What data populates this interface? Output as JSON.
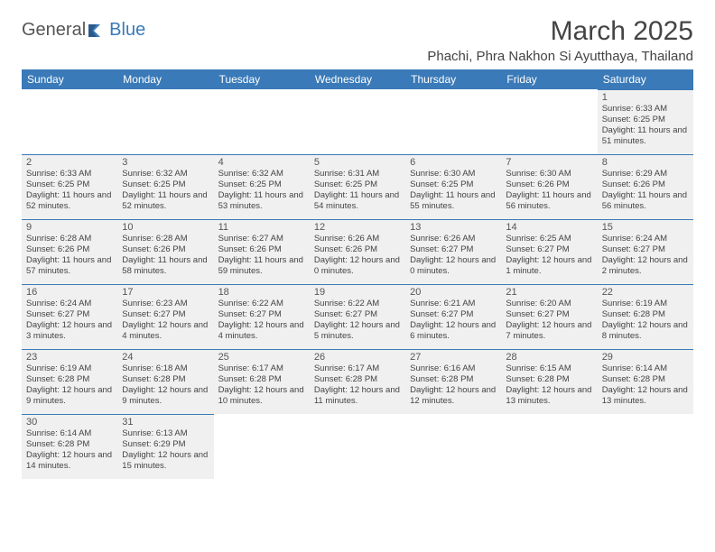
{
  "brand": {
    "word1": "General",
    "word2": "Blue"
  },
  "title": "March 2025",
  "location": "Phachi, Phra Nakhon Si Ayutthaya, Thailand",
  "colors": {
    "accent": "#3a7ab8",
    "cell_bg": "#f0f0f0",
    "text": "#444444"
  },
  "day_headers": [
    "Sunday",
    "Monday",
    "Tuesday",
    "Wednesday",
    "Thursday",
    "Friday",
    "Saturday"
  ],
  "weeks": [
    [
      null,
      null,
      null,
      null,
      null,
      null,
      {
        "n": "1",
        "sr": "6:33 AM",
        "ss": "6:25 PM",
        "dl": "11 hours and 51 minutes."
      }
    ],
    [
      {
        "n": "2",
        "sr": "6:33 AM",
        "ss": "6:25 PM",
        "dl": "11 hours and 52 minutes."
      },
      {
        "n": "3",
        "sr": "6:32 AM",
        "ss": "6:25 PM",
        "dl": "11 hours and 52 minutes."
      },
      {
        "n": "4",
        "sr": "6:32 AM",
        "ss": "6:25 PM",
        "dl": "11 hours and 53 minutes."
      },
      {
        "n": "5",
        "sr": "6:31 AM",
        "ss": "6:25 PM",
        "dl": "11 hours and 54 minutes."
      },
      {
        "n": "6",
        "sr": "6:30 AM",
        "ss": "6:25 PM",
        "dl": "11 hours and 55 minutes."
      },
      {
        "n": "7",
        "sr": "6:30 AM",
        "ss": "6:26 PM",
        "dl": "11 hours and 56 minutes."
      },
      {
        "n": "8",
        "sr": "6:29 AM",
        "ss": "6:26 PM",
        "dl": "11 hours and 56 minutes."
      }
    ],
    [
      {
        "n": "9",
        "sr": "6:28 AM",
        "ss": "6:26 PM",
        "dl": "11 hours and 57 minutes."
      },
      {
        "n": "10",
        "sr": "6:28 AM",
        "ss": "6:26 PM",
        "dl": "11 hours and 58 minutes."
      },
      {
        "n": "11",
        "sr": "6:27 AM",
        "ss": "6:26 PM",
        "dl": "11 hours and 59 minutes."
      },
      {
        "n": "12",
        "sr": "6:26 AM",
        "ss": "6:26 PM",
        "dl": "12 hours and 0 minutes."
      },
      {
        "n": "13",
        "sr": "6:26 AM",
        "ss": "6:27 PM",
        "dl": "12 hours and 0 minutes."
      },
      {
        "n": "14",
        "sr": "6:25 AM",
        "ss": "6:27 PM",
        "dl": "12 hours and 1 minute."
      },
      {
        "n": "15",
        "sr": "6:24 AM",
        "ss": "6:27 PM",
        "dl": "12 hours and 2 minutes."
      }
    ],
    [
      {
        "n": "16",
        "sr": "6:24 AM",
        "ss": "6:27 PM",
        "dl": "12 hours and 3 minutes."
      },
      {
        "n": "17",
        "sr": "6:23 AM",
        "ss": "6:27 PM",
        "dl": "12 hours and 4 minutes."
      },
      {
        "n": "18",
        "sr": "6:22 AM",
        "ss": "6:27 PM",
        "dl": "12 hours and 4 minutes."
      },
      {
        "n": "19",
        "sr": "6:22 AM",
        "ss": "6:27 PM",
        "dl": "12 hours and 5 minutes."
      },
      {
        "n": "20",
        "sr": "6:21 AM",
        "ss": "6:27 PM",
        "dl": "12 hours and 6 minutes."
      },
      {
        "n": "21",
        "sr": "6:20 AM",
        "ss": "6:27 PM",
        "dl": "12 hours and 7 minutes."
      },
      {
        "n": "22",
        "sr": "6:19 AM",
        "ss": "6:28 PM",
        "dl": "12 hours and 8 minutes."
      }
    ],
    [
      {
        "n": "23",
        "sr": "6:19 AM",
        "ss": "6:28 PM",
        "dl": "12 hours and 9 minutes."
      },
      {
        "n": "24",
        "sr": "6:18 AM",
        "ss": "6:28 PM",
        "dl": "12 hours and 9 minutes."
      },
      {
        "n": "25",
        "sr": "6:17 AM",
        "ss": "6:28 PM",
        "dl": "12 hours and 10 minutes."
      },
      {
        "n": "26",
        "sr": "6:17 AM",
        "ss": "6:28 PM",
        "dl": "12 hours and 11 minutes."
      },
      {
        "n": "27",
        "sr": "6:16 AM",
        "ss": "6:28 PM",
        "dl": "12 hours and 12 minutes."
      },
      {
        "n": "28",
        "sr": "6:15 AM",
        "ss": "6:28 PM",
        "dl": "12 hours and 13 minutes."
      },
      {
        "n": "29",
        "sr": "6:14 AM",
        "ss": "6:28 PM",
        "dl": "12 hours and 13 minutes."
      }
    ],
    [
      {
        "n": "30",
        "sr": "6:14 AM",
        "ss": "6:28 PM",
        "dl": "12 hours and 14 minutes."
      },
      {
        "n": "31",
        "sr": "6:13 AM",
        "ss": "6:29 PM",
        "dl": "12 hours and 15 minutes."
      },
      null,
      null,
      null,
      null,
      null
    ]
  ],
  "labels": {
    "sunrise": "Sunrise:",
    "sunset": "Sunset:",
    "daylight": "Daylight:"
  }
}
